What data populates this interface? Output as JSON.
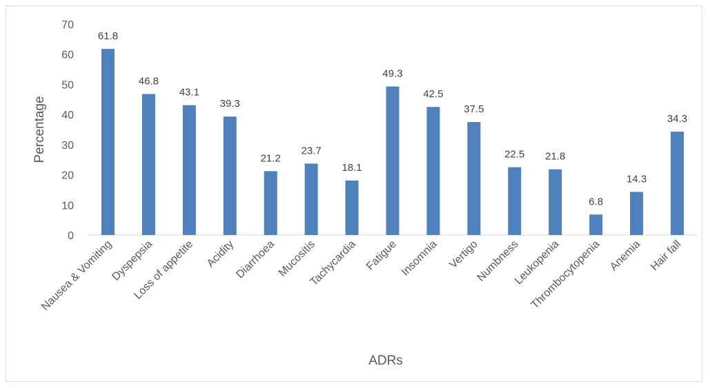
{
  "chart_data": {
    "type": "bar",
    "title": "",
    "xlabel": "ADRs",
    "ylabel": "Percentage",
    "ylim": [
      0,
      70
    ],
    "ytick_step": 10,
    "yticks": [
      "0",
      "10",
      "20",
      "30",
      "40",
      "50",
      "60",
      "70"
    ],
    "grid": false,
    "legend": "none",
    "bar_color": "#4f81bd",
    "categories": [
      "Nausea & Vomiting",
      "Dyspepsia",
      "Loss of appetite",
      "Acidity",
      "Diarrhoea",
      "Mucositis",
      "Tachycardia",
      "Fatigue",
      "Insomnia",
      "Vertigo",
      "Numbness",
      "Leukopenia",
      "Thrombocytopenia",
      "Anemia",
      "Hair fall"
    ],
    "values": [
      61.8,
      46.8,
      43.1,
      39.3,
      21.2,
      23.7,
      18.1,
      49.3,
      42.5,
      37.5,
      22.5,
      21.8,
      6.8,
      14.3,
      34.3
    ],
    "value_labels": [
      "61.8",
      "46.8",
      "43.1",
      "39.3",
      "21.2",
      "23.7",
      "18.1",
      "49.3",
      "42.5",
      "37.5",
      "22.5",
      "21.8",
      "6.8",
      "14.3",
      "34.3"
    ]
  }
}
